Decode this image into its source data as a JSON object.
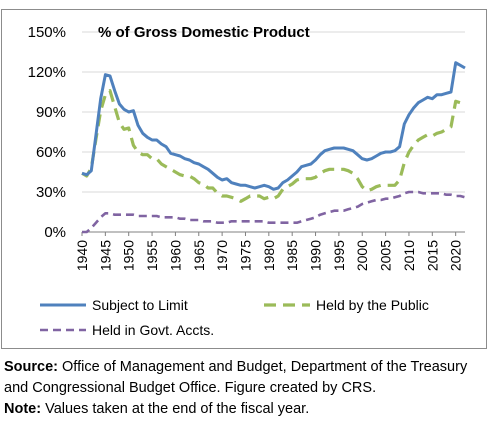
{
  "chart_data": {
    "type": "line",
    "title": "% of Gross Domestic Product",
    "ylim": [
      0,
      150
    ],
    "yticks": [
      "0%",
      "30%",
      "60%",
      "90%",
      "120%",
      "150%"
    ],
    "ytick_values": [
      0,
      30,
      60,
      90,
      120,
      150
    ],
    "xlim": [
      1940,
      2022
    ],
    "xticks": [
      "1940",
      "1945",
      "1950",
      "1955",
      "1960",
      "1965",
      "1970",
      "1975",
      "1980",
      "1985",
      "1990",
      "1995",
      "2000",
      "2005",
      "2010",
      "2015",
      "2020"
    ],
    "xtick_values": [
      1940,
      1945,
      1950,
      1955,
      1960,
      1965,
      1970,
      1975,
      1980,
      1985,
      1990,
      1995,
      2000,
      2005,
      2010,
      2015,
      2020
    ],
    "legend_position": "bottom",
    "series": [
      {
        "name": "Subject to Limit",
        "color": "#4f81bd",
        "dash": "solid",
        "x": [
          1940,
          1941,
          1942,
          1943,
          1944,
          1945,
          1946,
          1947,
          1948,
          1949,
          1950,
          1951,
          1952,
          1953,
          1954,
          1955,
          1956,
          1957,
          1958,
          1959,
          1960,
          1961,
          1962,
          1963,
          1964,
          1965,
          1966,
          1967,
          1968,
          1969,
          1970,
          1971,
          1972,
          1973,
          1974,
          1975,
          1976,
          1977,
          1978,
          1979,
          1980,
          1981,
          1982,
          1983,
          1984,
          1985,
          1986,
          1987,
          1988,
          1989,
          1990,
          1991,
          1992,
          1993,
          1994,
          1995,
          1996,
          1997,
          1998,
          1999,
          2000,
          2001,
          2002,
          2003,
          2004,
          2005,
          2006,
          2007,
          2008,
          2009,
          2010,
          2011,
          2012,
          2013,
          2014,
          2015,
          2016,
          2017,
          2018,
          2019,
          2020,
          2021,
          2022
        ],
        "y": [
          44,
          43,
          46,
          73,
          100,
          118,
          117,
          106,
          96,
          92,
          90,
          91,
          80,
          74,
          71,
          69,
          69,
          66,
          64,
          59,
          58,
          57,
          55,
          54,
          52,
          51,
          49,
          47,
          44,
          41,
          39,
          40,
          37,
          36,
          35,
          35,
          34,
          33,
          34,
          35,
          34,
          32,
          33,
          37,
          39,
          42,
          45,
          49,
          50,
          51,
          54,
          58,
          61,
          62,
          63,
          63,
          63,
          62,
          61,
          58,
          55,
          54,
          55,
          57,
          59,
          60,
          60,
          61,
          64,
          81,
          88,
          93,
          97,
          99,
          101,
          100,
          103,
          103,
          104,
          105,
          127,
          125,
          123
        ]
      },
      {
        "name": "Held by the Public",
        "color": "#9bbb59",
        "dash": "dashed",
        "x": [
          1940,
          1941,
          1942,
          1943,
          1944,
          1945,
          1946,
          1947,
          1948,
          1949,
          1950,
          1951,
          1952,
          1953,
          1954,
          1955,
          1956,
          1957,
          1958,
          1959,
          1960,
          1961,
          1962,
          1963,
          1964,
          1965,
          1966,
          1967,
          1968,
          1969,
          1970,
          1971,
          1972,
          1973,
          1974,
          1975,
          1976,
          1977,
          1978,
          1979,
          1980,
          1981,
          1982,
          1983,
          1984,
          1985,
          1986,
          1987,
          1988,
          1989,
          1990,
          1991,
          1992,
          1993,
          1994,
          1995,
          1996,
          1997,
          1998,
          1999,
          2000,
          2001,
          2002,
          2003,
          2004,
          2005,
          2006,
          2007,
          2008,
          2009,
          2010,
          2011,
          2012,
          2013,
          2014,
          2015,
          2016,
          2017,
          2018,
          2019,
          2020,
          2021,
          2022
        ],
        "y": [
          44,
          42,
          48,
          70,
          91,
          103,
          106,
          94,
          82,
          77,
          78,
          65,
          60,
          58,
          58,
          55,
          55,
          51,
          49,
          47,
          45,
          43,
          42,
          42,
          40,
          37,
          36,
          33,
          33,
          29,
          27,
          27,
          26,
          25,
          23,
          25,
          27,
          27,
          27,
          25,
          26,
          25,
          27,
          32,
          34,
          36,
          39,
          40,
          40,
          40,
          41,
          44,
          46,
          47,
          47,
          47,
          47,
          46,
          44,
          40,
          34,
          31,
          32,
          34,
          35,
          35,
          35,
          35,
          39,
          52,
          60,
          65,
          69,
          71,
          73,
          72,
          74,
          75,
          77,
          79,
          98,
          97,
          96
        ]
      },
      {
        "name": "Held in Govt. Accts.",
        "color": "#8064a2",
        "dash": "dashed",
        "x": [
          1940,
          1941,
          1942,
          1943,
          1944,
          1945,
          1946,
          1947,
          1948,
          1949,
          1950,
          1951,
          1952,
          1953,
          1954,
          1955,
          1956,
          1957,
          1958,
          1959,
          1960,
          1961,
          1962,
          1963,
          1964,
          1965,
          1966,
          1967,
          1968,
          1969,
          1970,
          1971,
          1972,
          1973,
          1974,
          1975,
          1976,
          1977,
          1978,
          1979,
          1980,
          1981,
          1982,
          1983,
          1984,
          1985,
          1986,
          1987,
          1988,
          1989,
          1990,
          1991,
          1992,
          1993,
          1994,
          1995,
          1996,
          1997,
          1998,
          1999,
          2000,
          2001,
          2002,
          2003,
          2004,
          2005,
          2006,
          2007,
          2008,
          2009,
          2010,
          2011,
          2012,
          2013,
          2014,
          2015,
          2016,
          2017,
          2018,
          2019,
          2020,
          2021,
          2022
        ],
        "y": [
          0,
          0,
          3,
          7,
          11,
          14,
          14,
          13,
          13,
          13,
          13,
          13,
          12,
          12,
          12,
          12,
          12,
          11,
          11,
          11,
          11,
          10,
          10,
          9,
          9,
          9,
          8,
          8,
          8,
          7,
          7,
          7,
          8,
          8,
          8,
          8,
          8,
          8,
          8,
          8,
          7,
          7,
          7,
          7,
          7,
          7,
          7,
          8,
          9,
          10,
          11,
          13,
          14,
          15,
          16,
          16,
          16,
          17,
          18,
          19,
          21,
          22,
          23,
          24,
          24,
          25,
          25,
          26,
          27,
          29,
          30,
          30,
          30,
          29,
          29,
          29,
          29,
          29,
          28,
          28,
          27,
          27,
          26
        ]
      }
    ]
  },
  "notes": {
    "source_label": "Source:",
    "source_text": "Office of Management and Budget, Department of the Treasury and Congressional Budget Office. Figure created by CRS.",
    "note_label": "Note:",
    "note_text": "Values taken at the end of the fiscal year."
  }
}
